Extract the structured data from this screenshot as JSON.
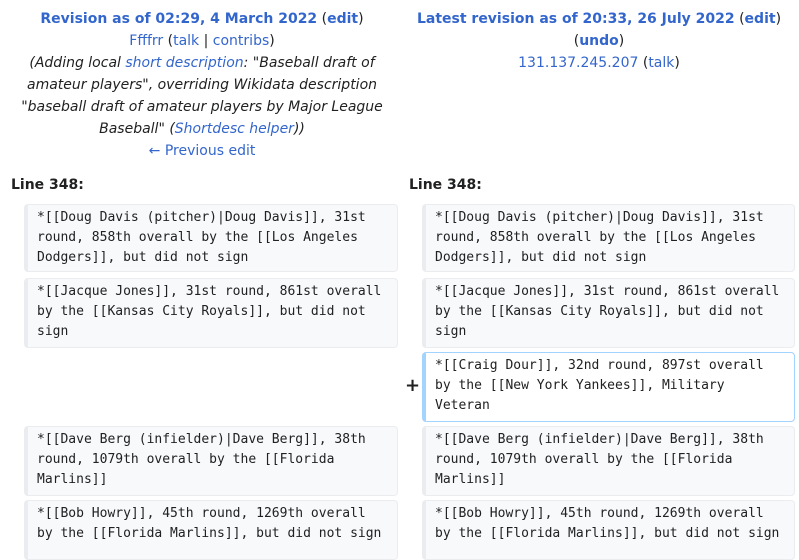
{
  "left": {
    "title_prefix": "Revision as of 02:29, 4 March 2022",
    "edit_label": "edit",
    "user": "Ffffrr",
    "talk_label": "talk",
    "contribs_label": "contribs",
    "summary_open": "(Adding local ",
    "summary_link": "short description",
    "summary_text": ": \"Baseball draft of amateur players\", overriding Wikidata description \"baseball draft of amateur players by Major League Baseball\" (",
    "summary_tool": "Shortdesc helper",
    "summary_close": "))",
    "prev_edit": "← Previous edit",
    "line_label": "Line 348:"
  },
  "right": {
    "title_prefix": "Latest revision as of 20:33, 26 July 2022",
    "edit_label": "edit",
    "undo_label": "undo",
    "user": "131.137.245.207",
    "talk_label": "talk",
    "line_label": "Line 348:"
  },
  "diff": {
    "added_marker": "+",
    "rows": [
      {
        "left": "*[[Doug Davis (pitcher)|Doug Davis]], 31st round, 858th overall by the [[Los Angeles Dodgers]], but did not sign",
        "right": "*[[Doug Davis (pitcher)|Doug Davis]], 31st round, 858th overall by the [[Los Angeles Dodgers]], but did not sign"
      },
      {
        "left": "*[[Jacque Jones]], 31st round, 861st overall by the [[Kansas City Royals]], but did not sign",
        "right": "*[[Jacque Jones]], 31st round, 861st overall by the [[Kansas City Royals]], but did not sign"
      },
      {
        "left": "",
        "right": "*[[Craig Dour]], 32nd round, 897st overall by the [[New York Yankees]], Military Veteran"
      },
      {
        "left": "*[[Dave Berg (infielder)|Dave Berg]], 38th round, 1079th overall by the [[Florida Marlins]]",
        "right": "*[[Dave Berg (infielder)|Dave Berg]], 38th round, 1079th overall by the [[Florida Marlins]]"
      },
      {
        "left": "*[[Bob Howry]], 45th round, 1269th overall by the [[Florida Marlins]], but did not sign",
        "right": "*[[Bob Howry]], 45th round, 1269th overall by the [[Florida Marlins]], but did not sign"
      }
    ]
  }
}
